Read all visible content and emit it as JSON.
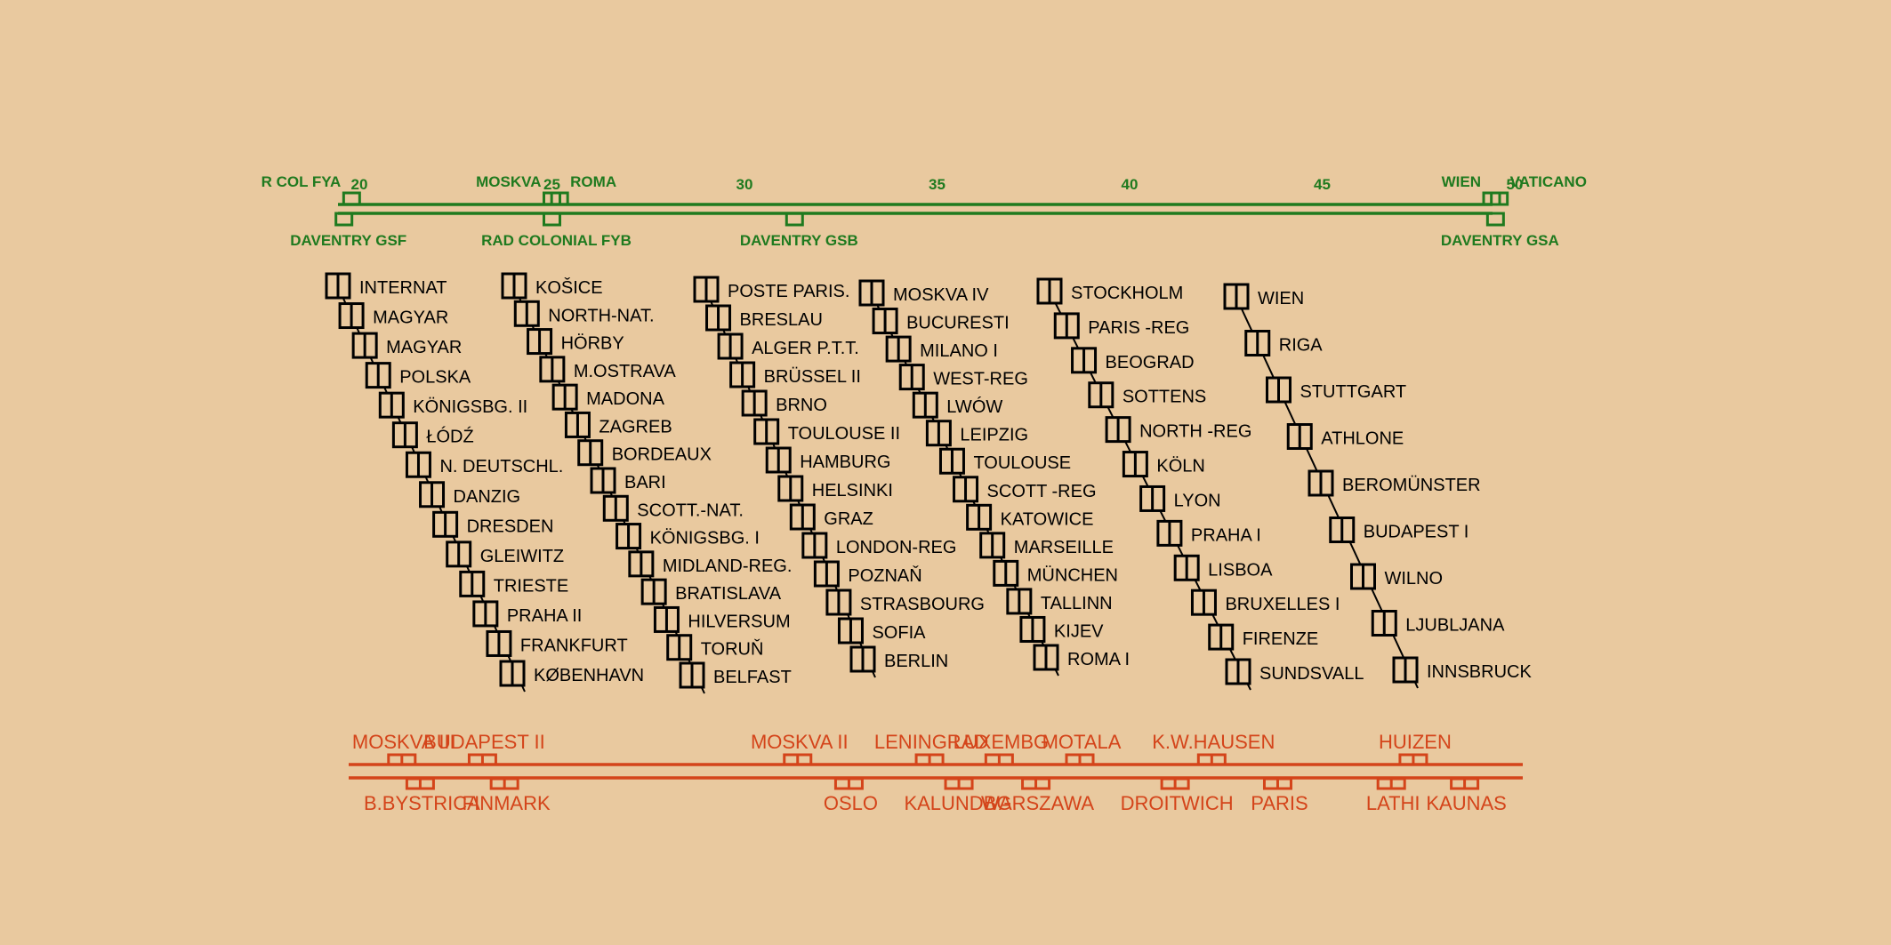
{
  "colors": {
    "background": "#e9c99f",
    "short_wave": "#1f7a1f",
    "medium_wave": "#d4441a",
    "stations": "#000000"
  },
  "short_wave": {
    "scale": [
      "20",
      "25",
      "30",
      "35",
      "40",
      "45",
      "50"
    ],
    "top_labels": [
      {
        "text": "R COL FYA",
        "pos": 19.8
      },
      {
        "text": "MOSKVA",
        "pos": 25.0
      },
      {
        "text": "ROMA",
        "pos": 25.2
      },
      {
        "text": "WIEN",
        "pos": 49.4
      },
      {
        "text": "VATICANO",
        "pos": 49.6
      }
    ],
    "bottom_labels": [
      {
        "text": "DAVENTRY GSF",
        "pos": 19.6
      },
      {
        "text": "RAD COLONIAL FYB",
        "pos": 25.0
      },
      {
        "text": "DAVENTRY GSB",
        "pos": 31.3
      },
      {
        "text": "DAVENTRY GSA",
        "pos": 49.5
      }
    ]
  },
  "medium_wave": {
    "top_labels": [
      {
        "text": "MOSKVA III",
        "pos": 1.5
      },
      {
        "text": "BUDAPEST II",
        "pos": 3.7
      },
      {
        "text": "MOSKVA II",
        "pos": 12.3
      },
      {
        "text": "LENINGRAD",
        "pos": 15.9
      },
      {
        "text": "LUXEMBG",
        "pos": 17.8
      },
      {
        "text": "MOTALA",
        "pos": 20.0
      },
      {
        "text": "K.W.HAUSEN",
        "pos": 23.6
      },
      {
        "text": "HUIZEN",
        "pos": 29.1
      }
    ],
    "bottom_labels": [
      {
        "text": "B.BYSTRICA",
        "pos": 2.0
      },
      {
        "text": "FINMARK",
        "pos": 4.3
      },
      {
        "text": "OSLO",
        "pos": 13.7
      },
      {
        "text": "KALUNDBG.",
        "pos": 16.7
      },
      {
        "text": "WARSZAWA",
        "pos": 18.8
      },
      {
        "text": "DROITWICH",
        "pos": 22.6
      },
      {
        "text": "PARIS",
        "pos": 25.4
      },
      {
        "text": "LATHI",
        "pos": 28.5
      },
      {
        "text": "KAUNAS",
        "pos": 30.5
      }
    ]
  },
  "long_wave_columns": [
    [
      "INTERNAT",
      "MAGYAR",
      "MAGYAR",
      "POLSKA",
      "KÖNIGSBG. II",
      "ŁÓDŹ",
      "N. DEUTSCHL.",
      "DANZIG",
      "DRESDEN",
      "GLEIWITZ",
      "TRIESTE",
      "PRAHA II",
      "FRANKFURT",
      "KØBENHAVN"
    ],
    [
      "KOŠICE",
      "NORTH-NAT.",
      "HÖRBY",
      "M.OSTRAVA",
      "MADONA",
      "ZAGREB",
      "BORDEAUX",
      "BARI",
      "SCOTT.-NAT.",
      "KÖNIGSBG. I",
      "MIDLAND-REG.",
      "BRATISLAVA",
      "HILVERSUM",
      "TORUŇ",
      "BELFAST"
    ],
    [
      "POSTE PARIS.",
      "BRESLAU",
      "ALGER P.T.T.",
      "BRÜSSEL II",
      "BRNO",
      "TOULOUSE II",
      "HAMBURG",
      "HELSINKI",
      "GRAZ",
      "LONDON-REG",
      "POZNAŇ",
      "STRASBOURG",
      "SOFIA",
      "BERLIN"
    ],
    [
      "MOSKVA IV",
      "BUCURESTI",
      "MILANO I",
      "WEST-REG",
      "LWÓW",
      "LEIPZIG",
      "TOULOUSE",
      "SCOTT -REG",
      "KATOWICE",
      "MARSEILLE",
      "MÜNCHEN",
      "TALLINN",
      "KIJEV",
      "ROMA I"
    ],
    [
      "STOCKHOLM",
      "PARIS -REG",
      "BEOGRAD",
      "SOTTENS",
      "NORTH -REG",
      "KÖLN",
      "LYON",
      "PRAHA I",
      "LISBOA",
      "BRUXELLES I",
      "FIRENZE",
      "SUNDSVALL"
    ],
    [
      "WIEN",
      "RIGA",
      "STUTTGART",
      "ATHLONE",
      "BEROMÜNSTER",
      "BUDAPEST I",
      "WILNO",
      "LJUBLJANA",
      "INNSBRUCK"
    ]
  ]
}
